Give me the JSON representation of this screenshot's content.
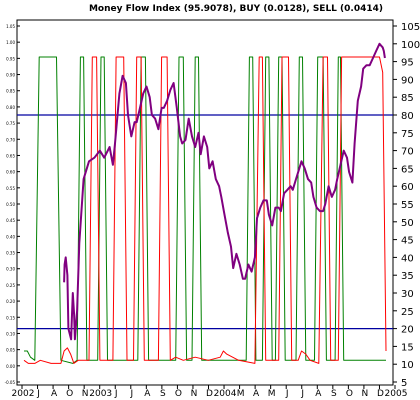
{
  "chart_data": {
    "type": "line",
    "title": "Money Flow Index (95.9078), BUY (0.0128), SELL (0.0414)",
    "x_tick_labels": [
      "2002",
      "J",
      "A",
      "O",
      "N",
      "2003",
      "J",
      "J",
      "A",
      "S",
      "O",
      "N",
      "D",
      "2004",
      "M",
      "A",
      "M",
      "J",
      "J",
      "A",
      "S",
      "O",
      "N",
      "D",
      "2005"
    ],
    "left_axis": {
      "ylim": [
        -0.05,
        1.1
      ],
      "tick_labels": [
        "1.05",
        "1.00",
        "0.95",
        "0.90",
        "0.85",
        "0.80",
        "0.75",
        "0.70",
        "0.65",
        "0.60",
        "0.55",
        "0.50",
        "0.45",
        "0.40",
        "0.35",
        "0.30",
        "0.25",
        "0.20",
        "0.15",
        "0.10",
        "0.05",
        "0.00",
        "-0.05"
      ]
    },
    "right_axis": {
      "ylim": [
        5,
        105
      ],
      "tick_labels": [
        "105",
        "100",
        "95",
        "90",
        "85",
        "80",
        "75",
        "70",
        "65",
        "60",
        "55",
        "50",
        "45",
        "40",
        "35",
        "30",
        "25",
        "20",
        "15",
        "10",
        "5"
      ]
    },
    "reference_lines": [
      80,
      20
    ],
    "series": [
      {
        "color": "#800080",
        "axis": "right",
        "values": [
          [
            67.0,
            33
          ],
          [
            67.5,
            38
          ],
          [
            68.5,
            40
          ],
          [
            70,
            35
          ],
          [
            71,
            20
          ],
          [
            73.5,
            17
          ],
          [
            75,
            30
          ],
          [
            76.2,
            24
          ],
          [
            77,
            17
          ],
          [
            79,
            25
          ],
          [
            81,
            44
          ],
          [
            85,
            62
          ],
          [
            90,
            67
          ],
          [
            95,
            68
          ],
          [
            100,
            70
          ],
          [
            104,
            68
          ],
          [
            109,
            71
          ],
          [
            112,
            66
          ],
          [
            114,
            72
          ],
          [
            118,
            86
          ],
          [
            121,
            91
          ],
          [
            124,
            89
          ],
          [
            126,
            80
          ],
          [
            129,
            74
          ],
          [
            132,
            78
          ],
          [
            134,
            78
          ],
          [
            137,
            82
          ],
          [
            140,
            86
          ],
          [
            143,
            88
          ],
          [
            146,
            85
          ],
          [
            148,
            80
          ],
          [
            151,
            79
          ],
          [
            154,
            76
          ],
          [
            157,
            82
          ],
          [
            159,
            82
          ],
          [
            162,
            84
          ],
          [
            165,
            87
          ],
          [
            168,
            89
          ],
          [
            171,
            82
          ],
          [
            174,
            74
          ],
          [
            176,
            72
          ],
          [
            179,
            73
          ],
          [
            182,
            79
          ],
          [
            185,
            74
          ],
          [
            188,
            71
          ],
          [
            191,
            75
          ],
          [
            193,
            69
          ],
          [
            196,
            74
          ],
          [
            199,
            71
          ],
          [
            201,
            65
          ],
          [
            204,
            67
          ],
          [
            207,
            62
          ],
          [
            210,
            60
          ],
          [
            212,
            57
          ],
          [
            215,
            52
          ],
          [
            218,
            47
          ],
          [
            221,
            43
          ],
          [
            223,
            37
          ],
          [
            226,
            41
          ],
          [
            229,
            38
          ],
          [
            232,
            34
          ],
          [
            234,
            34
          ],
          [
            237,
            38
          ],
          [
            240,
            36
          ],
          [
            243,
            40
          ],
          [
            245,
            51
          ],
          [
            248,
            54
          ],
          [
            251,
            56
          ],
          [
            254,
            56
          ],
          [
            256,
            52
          ],
          [
            259,
            49
          ],
          [
            262,
            54
          ],
          [
            265,
            54
          ],
          [
            267,
            53
          ],
          [
            270,
            58
          ],
          [
            273,
            59
          ],
          [
            276,
            60
          ],
          [
            278,
            59
          ],
          [
            281,
            62
          ],
          [
            284,
            65
          ],
          [
            286,
            67
          ],
          [
            289,
            65
          ],
          [
            292,
            62
          ],
          [
            295,
            61
          ],
          [
            297,
            57
          ],
          [
            300,
            54
          ],
          [
            303,
            53
          ],
          [
            306,
            53
          ],
          [
            308,
            55
          ],
          [
            311,
            60
          ],
          [
            314,
            57
          ],
          [
            317,
            59
          ],
          [
            319,
            62
          ],
          [
            322,
            66
          ],
          [
            325,
            70
          ],
          [
            328,
            68
          ],
          [
            330,
            64
          ],
          [
            333,
            61
          ],
          [
            335,
            72
          ],
          [
            338,
            84
          ],
          [
            341,
            88
          ],
          [
            343,
            93
          ],
          [
            346,
            94
          ],
          [
            349,
            94
          ],
          [
            352,
            96
          ],
          [
            355,
            98
          ],
          [
            358,
            100
          ],
          [
            361,
            99
          ],
          [
            362,
            98
          ],
          [
            363,
            96
          ]
        ]
      },
      {
        "color": "#008000",
        "axis": "left",
        "values": [
          [
            30,
            0.05
          ],
          [
            33,
            0.05
          ],
          [
            36,
            0.03
          ],
          [
            40,
            0.02
          ],
          [
            44,
            1.0
          ],
          [
            60,
            1.0
          ],
          [
            64,
            0.02
          ],
          [
            75,
            0.01
          ],
          [
            79,
            0.02
          ],
          [
            82,
            1.0
          ],
          [
            85,
            1.0
          ],
          [
            88,
            0.02
          ],
          [
            98,
            0.02
          ],
          [
            101,
            1.0
          ],
          [
            104,
            1.0
          ],
          [
            107,
            0.02
          ],
          [
            135,
            0.02
          ],
          [
            138,
            1.0
          ],
          [
            142,
            1.0
          ],
          [
            145,
            0.02
          ],
          [
            170,
            0.02
          ],
          [
            173,
            1.0
          ],
          [
            177,
            1.0
          ],
          [
            180,
            0.02
          ],
          [
            185,
            0.02
          ],
          [
            188,
            1.0
          ],
          [
            191,
            1.0
          ],
          [
            194,
            0.02
          ],
          [
            235,
            0.02
          ],
          [
            238,
            1.0
          ],
          [
            241,
            1.0
          ],
          [
            244,
            0.02
          ],
          [
            250,
            0.02
          ],
          [
            253,
            1.0
          ],
          [
            256,
            1.0
          ],
          [
            259,
            0.02
          ],
          [
            262,
            0.02
          ],
          [
            265,
            1.0
          ],
          [
            268,
            1.0
          ],
          [
            271,
            0.02
          ],
          [
            281,
            0.02
          ],
          [
            284,
            1.0
          ],
          [
            287,
            1.0
          ],
          [
            290,
            0.02
          ],
          [
            298,
            0.02
          ],
          [
            301,
            1.0
          ],
          [
            306,
            1.0
          ],
          [
            309,
            0.02
          ],
          [
            317,
            0.02
          ],
          [
            320,
            1.0
          ],
          [
            322,
            1.0
          ],
          [
            325,
            0.02
          ],
          [
            364,
            0.02
          ]
        ]
      },
      {
        "color": "#ff0000",
        "axis": "left",
        "values": [
          [
            30,
            0.02
          ],
          [
            34,
            0.01
          ],
          [
            40,
            0.01
          ],
          [
            45,
            0.02
          ],
          [
            55,
            0.01
          ],
          [
            64,
            0.01
          ],
          [
            67,
            0.05
          ],
          [
            70,
            0.06
          ],
          [
            73,
            0.04
          ],
          [
            76,
            0.01
          ],
          [
            80,
            0.02
          ],
          [
            90,
            0.02
          ],
          [
            93,
            1.0
          ],
          [
            97,
            1.0
          ],
          [
            100,
            0.02
          ],
          [
            112,
            0.02
          ],
          [
            115,
            1.0
          ],
          [
            122,
            1.0
          ],
          [
            125,
            0.02
          ],
          [
            131,
            0.02
          ],
          [
            134,
            1.0
          ],
          [
            138,
            1.0
          ],
          [
            141,
            0.02
          ],
          [
            154,
            0.02
          ],
          [
            157,
            1.0
          ],
          [
            162,
            1.0
          ],
          [
            165,
            0.02
          ],
          [
            170,
            0.03
          ],
          [
            177,
            0.02
          ],
          [
            188,
            0.03
          ],
          [
            200,
            0.02
          ],
          [
            211,
            0.03
          ],
          [
            214,
            0.05
          ],
          [
            217,
            0.04
          ],
          [
            228,
            0.02
          ],
          [
            243,
            0.01
          ],
          [
            247,
            1.0
          ],
          [
            250,
            1.0
          ],
          [
            253,
            0.02
          ],
          [
            265,
            0.02
          ],
          [
            268,
            1.0
          ],
          [
            274,
            1.0
          ],
          [
            277,
            0.02
          ],
          [
            283,
            0.02
          ],
          [
            286,
            0.05
          ],
          [
            290,
            0.04
          ],
          [
            294,
            0.02
          ],
          [
            302,
            0.01
          ],
          [
            306,
            1.0
          ],
          [
            310,
            1.0
          ],
          [
            313,
            0.02
          ],
          [
            320,
            0.02
          ],
          [
            323,
            1.0
          ],
          [
            358,
            1.0
          ],
          [
            361,
            0.95
          ],
          [
            364,
            0.05
          ]
        ]
      }
    ],
    "grid": false
  }
}
